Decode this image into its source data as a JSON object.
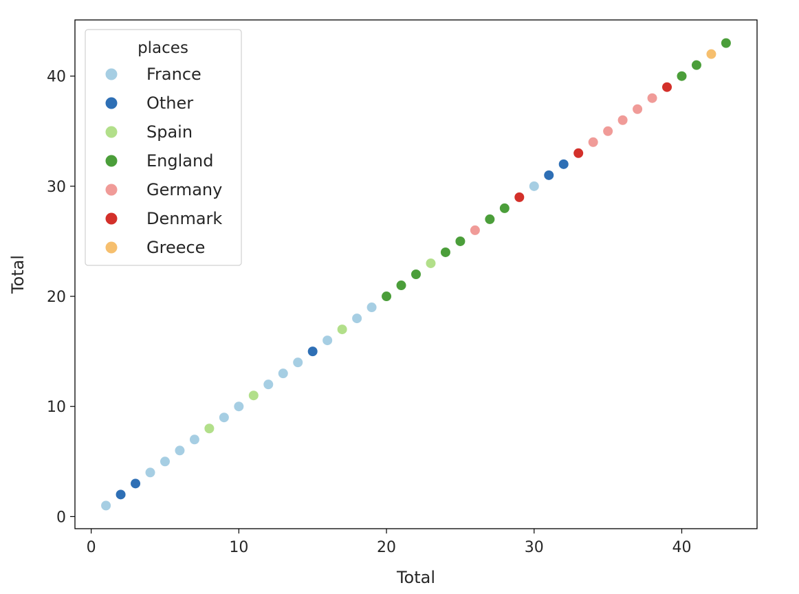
{
  "chart_data": {
    "type": "scatter",
    "xlabel": "Total",
    "ylabel": "Total",
    "xlim": [
      -1.1,
      45.1
    ],
    "ylim": [
      -1.1,
      45.1
    ],
    "xticks": [
      0,
      10,
      20,
      30,
      40
    ],
    "yticks": [
      0,
      10,
      20,
      30,
      40
    ],
    "grid": false,
    "legend": {
      "title": "places",
      "placement": "top-left"
    },
    "colors": {
      "France": "#a6cee3",
      "Other": "#2e6fb5",
      "Spain": "#b2df8a",
      "England": "#4b9e3a",
      "Germany": "#f09b98",
      "Denmark": "#d3302a",
      "Greece": "#f6bf6e"
    },
    "series": [
      {
        "name": "France",
        "x": [
          1,
          4,
          5,
          6,
          7,
          9,
          10,
          12,
          13,
          14,
          16,
          18,
          19,
          30
        ],
        "y": [
          1,
          4,
          5,
          6,
          7,
          9,
          10,
          12,
          13,
          14,
          16,
          18,
          19,
          30
        ]
      },
      {
        "name": "Other",
        "x": [
          2,
          3,
          15,
          31,
          32
        ],
        "y": [
          2,
          3,
          15,
          31,
          32
        ]
      },
      {
        "name": "Spain",
        "x": [
          8,
          11,
          17,
          23
        ],
        "y": [
          8,
          11,
          17,
          23
        ]
      },
      {
        "name": "England",
        "x": [
          20,
          21,
          22,
          24,
          25,
          27,
          28,
          40,
          41,
          43
        ],
        "y": [
          20,
          21,
          22,
          24,
          25,
          27,
          28,
          40,
          41,
          43
        ]
      },
      {
        "name": "Germany",
        "x": [
          26,
          34,
          35,
          36,
          37,
          38
        ],
        "y": [
          26,
          34,
          35,
          36,
          37,
          38
        ]
      },
      {
        "name": "Denmark",
        "x": [
          29,
          33,
          39
        ],
        "y": [
          29,
          33,
          39
        ]
      },
      {
        "name": "Greece",
        "x": [
          42
        ],
        "y": [
          42
        ]
      }
    ]
  }
}
